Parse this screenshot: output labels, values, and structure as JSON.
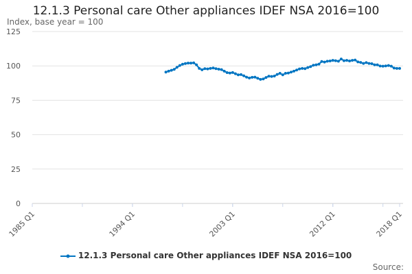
{
  "chart_data": {
    "type": "line",
    "title": "12.1.3 Personal care Other appliances IDEF NSA 2016=100",
    "ylabel": "Index, base year = 100",
    "xlabel": "",
    "ylim": [
      0,
      125
    ],
    "yticks": [
      0,
      25,
      50,
      75,
      100,
      125
    ],
    "xrange": [
      "1985 Q1",
      "2018 Q1"
    ],
    "xticks": [
      "1985 Q1",
      "1994 Q1",
      "2003 Q1",
      "2012 Q1",
      "2018 Q1"
    ],
    "grid": true,
    "legend_position": "bottom",
    "series": [
      {
        "name": "12.1.3 Personal care Other appliances IDEF NSA 2016=100",
        "color": "#0075c2",
        "start": "1997 Q1",
        "values": [
          95.5,
          96.2,
          96.8,
          97.5,
          99,
          100.3,
          101.2,
          101.7,
          102,
          102,
          102.2,
          100.8,
          98.2,
          97.2,
          98,
          97.8,
          98.2,
          98.5,
          98,
          97.6,
          97.3,
          96.2,
          95.1,
          94.8,
          95.2,
          94.3,
          93.5,
          93.7,
          92.8,
          91.8,
          91.2,
          91.7,
          91.8,
          91,
          90.2,
          90.5,
          91.6,
          92.5,
          92.3,
          92.6,
          93.8,
          94.6,
          93.5,
          94.6,
          94.8,
          95.5,
          96.2,
          97,
          97.8,
          98.2,
          98,
          98.8,
          99.5,
          100.5,
          100.8,
          101.3,
          103.2,
          102.8,
          103.4,
          103.6,
          104,
          103.8,
          103.4,
          105,
          103.8,
          104,
          103.6,
          104,
          104.3,
          102.9,
          102.5,
          101.8,
          102.4,
          101.8,
          101.6,
          100.8,
          100.8,
          99.9,
          99.8,
          100,
          100.3,
          99.8,
          98.4,
          98.2,
          98.2
        ]
      }
    ]
  },
  "source_label": "Source:"
}
